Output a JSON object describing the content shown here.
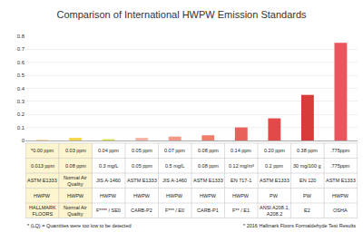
{
  "chart_data": {
    "type": "bar",
    "title": "Comparison of International HWPW Emission Standards",
    "categories": [
      "HALLMARK FLOORS",
      "Normal Air Quality",
      "F**** / SE0",
      "CARB-P2",
      "F*** / E0",
      "CARB-P1",
      "F** / E1",
      "ANSI A208.1, A208.2",
      "E2",
      "OSHA"
    ],
    "values": [
      0.003,
      0.02,
      0.01,
      0.02,
      0.03,
      0.04,
      0.1,
      0.17,
      0.35,
      0.75
    ],
    "colors": [
      "#f5a623",
      "#f5d547",
      "#dbe04a",
      "#f4b3a4",
      "#f29a86",
      "#ef7d6a",
      "#e9605a",
      "#e24a4a",
      "#d93a3a",
      "#e8555d"
    ],
    "ylim": [
      0,
      0.8
    ],
    "yticks": [
      0,
      0.1,
      0.2,
      0.3,
      0.4,
      0.5,
      0.6,
      0.7,
      0.8
    ],
    "grid": true,
    "tick_labels": "y",
    "table_rows": [
      [
        "*0.00 ppm",
        "0.03 ppm",
        "0.04 ppm",
        "0.05 ppm",
        "0.07 ppm",
        "0.08 ppm",
        "0.14 ppm",
        "0.20 ppm",
        "0.38 ppm",
        ".775ppm"
      ],
      [
        "0.013 ppm",
        "0.08 ppm",
        "0.3 mg/L",
        "0.05 ppm",
        "0.5 mg/L",
        "0.08 ppm",
        "0.12 mg/m³",
        "0.2 ppm",
        "30 mg/100 g",
        ".775ppm"
      ],
      [
        "ASTM E1333",
        "Normal Air Quality",
        "JIS A-1460",
        "ASTM E1333",
        "JIS A-1460",
        "ASTM E1333",
        "EN 717-1",
        "ASTM E1333",
        "EN 120",
        "ASTM E1333"
      ],
      [
        "HWPW",
        "HWPW",
        "HWPW",
        "HWPW",
        "HWPW",
        "HWPW",
        "HWPW",
        "PW",
        "PW",
        "HWPW"
      ]
    ],
    "footnotes": [
      "* (LQ) = Quantities were too low to be detected",
      "* 2016 Hallmark Floors Formaldehyde Test Results"
    ]
  }
}
